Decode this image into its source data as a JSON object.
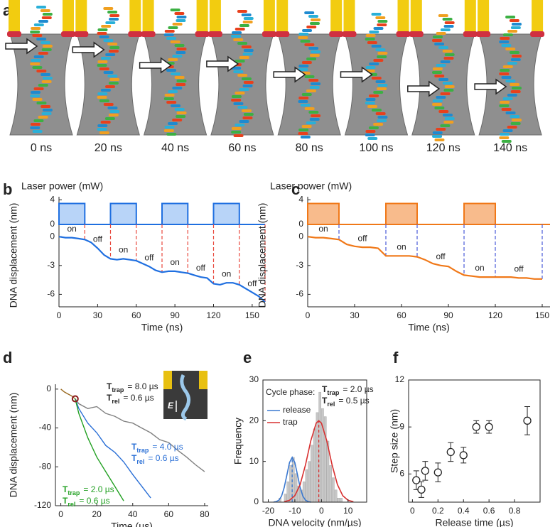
{
  "panel_a": {
    "panel": "a",
    "frames": [
      "0 ns",
      "20 ns",
      "40 ns",
      "60 ns",
      "80 ns",
      "100 ns",
      "120 ns",
      "140 ns"
    ]
  },
  "chart_data": [
    {
      "type": "line",
      "panel": "b",
      "laser": {
        "title": "Laser power (mW)",
        "x": [
          0,
          0,
          20,
          20,
          40,
          40,
          60,
          60,
          80,
          80,
          100,
          100,
          120,
          120,
          140,
          140,
          160
        ],
        "values": [
          0,
          3.4,
          3.4,
          0,
          0,
          3.4,
          3.4,
          0,
          0,
          3.4,
          3.4,
          0,
          0,
          3.4,
          3.4,
          0,
          0
        ],
        "color": "#1f6fe0",
        "fill": "#b8d4f8",
        "ylim": [
          0,
          4.5
        ],
        "yticks": [
          0,
          4
        ]
      },
      "x": [
        0,
        5,
        10,
        15,
        20,
        25,
        30,
        35,
        40,
        45,
        50,
        55,
        60,
        65,
        70,
        75,
        80,
        85,
        90,
        95,
        100,
        105,
        110,
        115,
        120,
        125,
        130,
        135,
        140,
        145,
        150,
        155,
        160
      ],
      "values": [
        0,
        -0.1,
        -0.1,
        -0.2,
        -0.3,
        -0.6,
        -1.2,
        -1.9,
        -2.3,
        -2.4,
        -2.3,
        -2.4,
        -2.5,
        -2.8,
        -3.1,
        -3.5,
        -3.7,
        -3.6,
        -3.6,
        -3.7,
        -3.8,
        -4.0,
        -4.2,
        -4.3,
        -4.9,
        -5.0,
        -4.8,
        -4.8,
        -5.0,
        -5.4,
        -5.8,
        -6.2,
        -6.8
      ],
      "color": "#1f6fe0",
      "xlim": [
        0,
        160
      ],
      "xticks": [
        0,
        30,
        60,
        90,
        120,
        150
      ],
      "ylim": [
        -7.3,
        1.2
      ],
      "yticks": [
        0,
        -3,
        -6
      ],
      "xlabel": "Time (ns)",
      "ylabel": "DNA displacement (nm)",
      "phase_lines": [
        20,
        40,
        60,
        80,
        100,
        120,
        140,
        160
      ],
      "phase_line_color": "#e8483c",
      "phase_labels": [
        "on",
        "off",
        "on",
        "off",
        "on",
        "off",
        "on",
        "off"
      ]
    },
    {
      "type": "line",
      "panel": "c",
      "laser": {
        "title": "Laser power (mW)",
        "x": [
          0,
          0,
          20,
          20,
          50,
          50,
          70,
          70,
          100,
          100,
          120,
          120,
          155
        ],
        "values": [
          0,
          3.4,
          3.4,
          0,
          0,
          3.4,
          3.4,
          0,
          0,
          3.4,
          3.4,
          0,
          0
        ],
        "color": "#f07818",
        "fill": "#f8bb8c",
        "ylim": [
          0,
          4.5
        ],
        "yticks": [
          0,
          4
        ]
      },
      "x": [
        0,
        5,
        10,
        15,
        20,
        25,
        30,
        35,
        40,
        45,
        50,
        55,
        60,
        65,
        70,
        75,
        80,
        85,
        90,
        95,
        100,
        105,
        110,
        115,
        120,
        125,
        130,
        135,
        140,
        145,
        150
      ],
      "values": [
        0,
        -0.1,
        -0.1,
        -0.2,
        -0.3,
        -0.8,
        -1.0,
        -1.1,
        -1.1,
        -1.2,
        -2.0,
        -2.0,
        -2.0,
        -2.0,
        -2.1,
        -2.4,
        -2.8,
        -3.0,
        -3.1,
        -3.6,
        -4.0,
        -4.1,
        -4.2,
        -4.2,
        -4.2,
        -4.2,
        -4.2,
        -4.3,
        -4.3,
        -4.4,
        -4.4
      ],
      "color": "#f07818",
      "xlim": [
        0,
        155
      ],
      "xticks": [
        0,
        30,
        60,
        90,
        120,
        150
      ],
      "ylim": [
        -7.3,
        1.2
      ],
      "yticks": [
        0,
        -3,
        -6
      ],
      "xlabel": "Time (ns)",
      "ylabel": "DNA displacement (nm)",
      "phase_lines": [
        20,
        50,
        70,
        100,
        120,
        150
      ],
      "phase_line_color": "#4a5ad8",
      "phase_labels": [
        "on",
        "off",
        "on",
        "off",
        "on",
        "off"
      ]
    },
    {
      "type": "multiline",
      "panel": "d",
      "xlim": [
        -3,
        82
      ],
      "xticks": [
        0,
        20,
        40,
        60,
        80
      ],
      "ylim": [
        -120,
        5
      ],
      "yticks": [
        0,
        -40,
        -80,
        -120
      ],
      "xlabel": "Time (µs)",
      "ylabel": "DNA displacement (nm)",
      "series": [
        {
          "color": "#9a6a20",
          "x": [
            0,
            2,
            4,
            6,
            8
          ],
          "values": [
            0,
            -3,
            -5,
            -7,
            -10
          ]
        },
        {
          "color": "#808080",
          "x": [
            8,
            10,
            15,
            20,
            25,
            30,
            35,
            40,
            45,
            50,
            55,
            60,
            65,
            70,
            75,
            80
          ],
          "values": [
            -10,
            -15,
            -20,
            -18,
            -25,
            -28,
            -33,
            -35,
            -40,
            -45,
            -52,
            -55,
            -63,
            -70,
            -78,
            -85
          ],
          "annotation": [
            [
              "T",
              "trap",
              "= 8.0 µs"
            ],
            [
              "T",
              "rel",
              "= 0.6 µs"
            ]
          ]
        },
        {
          "color": "#2a6fd6",
          "x": [
            8,
            10,
            15,
            20,
            25,
            30,
            35,
            40,
            45,
            50
          ],
          "values": [
            -10,
            -20,
            -35,
            -45,
            -58,
            -65,
            -75,
            -88,
            -100,
            -112
          ],
          "annotation": [
            [
              "T",
              "trap",
              "= 4.0 µs"
            ],
            [
              "T",
              "rel",
              "= 0.6 µs"
            ]
          ]
        },
        {
          "color": "#22a022",
          "x": [
            8,
            10,
            15,
            20,
            25,
            30,
            35
          ],
          "values": [
            -10,
            -25,
            -50,
            -70,
            -85,
            -100,
            -115
          ],
          "annotation": [
            [
              "T",
              "trap",
              "= 2.0 µs"
            ],
            [
              "T",
              "rel",
              "= 0.6 µs"
            ]
          ]
        }
      ],
      "marker": {
        "x": 8,
        "y": -10,
        "color": "#8b1a1a"
      },
      "inset_label": "E"
    },
    {
      "type": "histogram",
      "panel": "e",
      "bins": [
        -16,
        -15,
        -14,
        -13,
        -12,
        -11,
        -10,
        -9,
        -8,
        -7,
        -6,
        -5,
        -4,
        -3,
        -2,
        -1,
        0,
        1,
        2,
        3,
        4,
        5,
        6,
        7,
        8
      ],
      "counts": [
        1,
        0,
        2,
        5,
        9,
        11,
        7,
        4,
        3,
        5,
        8,
        10,
        14,
        18,
        22,
        27,
        23,
        21,
        15,
        9,
        6,
        3,
        1,
        1
      ],
      "color": "#c8c8c8",
      "xlim": [
        -22,
        17
      ],
      "xticks": [
        -20,
        -10,
        0,
        10
      ],
      "ylim": [
        0,
        30
      ],
      "yticks": [
        0,
        10,
        20,
        30
      ],
      "xlabel": "DNA velocity (nm/µs)",
      "ylabel": "Frequency",
      "legend_title": "Cycle phase:",
      "series": [
        {
          "name": "release",
          "color": "#3a78d0",
          "x": [
            -18,
            -17,
            -16,
            -15,
            -14,
            -13,
            -12,
            -11,
            -10,
            -9,
            -8,
            -7,
            -6,
            -5,
            -4
          ],
          "values": [
            0.02,
            0.12,
            0.48,
            1.49,
            3.57,
            6.67,
            9.71,
            11,
            9.71,
            6.67,
            3.57,
            1.49,
            0.48,
            0.12,
            0.02
          ],
          "mean": -11
        },
        {
          "name": "trap",
          "color": "#d83030",
          "x": [
            -14,
            -12,
            -10,
            -8,
            -6,
            -4,
            -2,
            -1,
            0,
            2,
            4,
            6,
            8,
            10,
            12
          ],
          "values": [
            0.1,
            0.46,
            1.59,
            4.33,
            9.16,
            15.1,
            19.4,
            20,
            19.4,
            15.1,
            9.16,
            4.33,
            1.59,
            0.46,
            0.1
          ],
          "mean": -1
        }
      ],
      "annotation": [
        [
          "T",
          "trap",
          "= 2.0 µs"
        ],
        [
          "T",
          "rel",
          "= 0.5 µs"
        ]
      ]
    },
    {
      "type": "scatter",
      "panel": "f",
      "x": [
        0.03,
        0.07,
        0.1,
        0.2,
        0.3,
        0.4,
        0.5,
        0.6,
        0.9
      ],
      "values": [
        5.6,
        5.0,
        6.2,
        6.1,
        7.4,
        7.2,
        9.0,
        9.0,
        9.4
      ],
      "errors": [
        0.6,
        0.5,
        0.6,
        0.6,
        0.6,
        0.5,
        0.4,
        0.4,
        0.9
      ],
      "xlim": [
        -0.03,
        1
      ],
      "xticks": [
        0,
        0.2,
        0.4,
        0.6,
        0.8
      ],
      "ylim": [
        4.2,
        12
      ],
      "yticks": [
        6,
        9,
        12
      ],
      "xlabel": "Release time (µs)",
      "ylabel": "Step size (nm)"
    }
  ]
}
